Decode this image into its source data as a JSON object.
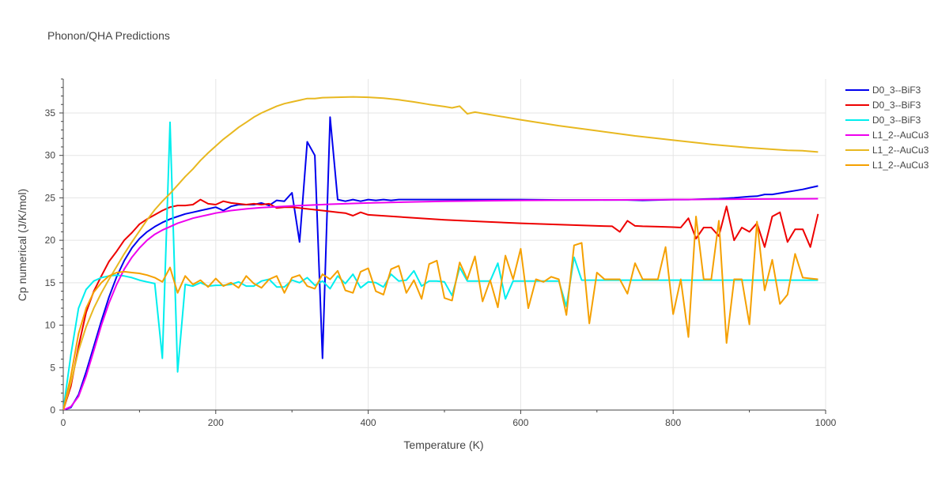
{
  "chart_data": {
    "type": "line",
    "title": "Phonon/QHA Predictions",
    "xlabel": "Temperature (K)",
    "ylabel": "Cp numerical (J/K/mol)",
    "xlim": [
      0,
      1000
    ],
    "ylim": [
      0,
      39
    ],
    "xticks": [
      0,
      200,
      400,
      600,
      800,
      1000
    ],
    "yticks": [
      0,
      5,
      10,
      15,
      20,
      25,
      30,
      35
    ],
    "grid": true,
    "legend_position": "top-right",
    "series": [
      {
        "name": "D0_3--BiF3",
        "color": "#0000ee",
        "x": [
          0,
          10,
          20,
          30,
          40,
          50,
          60,
          70,
          80,
          90,
          100,
          110,
          120,
          130,
          140,
          150,
          160,
          170,
          180,
          190,
          200,
          210,
          220,
          230,
          240,
          250,
          260,
          270,
          280,
          290,
          300,
          310,
          320,
          330,
          340,
          350,
          360,
          370,
          380,
          390,
          400,
          410,
          420,
          430,
          440,
          450,
          500,
          550,
          600,
          650,
          700,
          720,
          740,
          760,
          780,
          800,
          820,
          840,
          860,
          880,
          900,
          910,
          920,
          930,
          940,
          950,
          960,
          970,
          980,
          990
        ],
        "y": [
          0,
          0.3,
          1.8,
          4.5,
          7.5,
          10.5,
          13.3,
          15.7,
          17.6,
          19.1,
          20.2,
          21.0,
          21.6,
          22.1,
          22.5,
          22.8,
          23.1,
          23.3,
          23.5,
          23.7,
          23.9,
          23.5,
          24.0,
          24.2,
          24.2,
          24.2,
          24.4,
          24.1,
          24.7,
          24.6,
          25.6,
          19.8,
          31.6,
          30.0,
          6.1,
          34.5,
          24.8,
          24.6,
          24.8,
          24.6,
          24.8,
          24.7,
          24.8,
          24.7,
          24.8,
          24.8,
          24.8,
          24.8,
          24.8,
          24.75,
          24.75,
          24.75,
          24.75,
          24.7,
          24.75,
          24.8,
          24.8,
          24.85,
          24.9,
          25.0,
          25.15,
          25.2,
          25.4,
          25.4,
          25.55,
          25.7,
          25.85,
          26.0,
          26.2,
          26.4
        ]
      },
      {
        "name": "D0_3--BiF3",
        "color": "#ee0000",
        "x": [
          0,
          10,
          20,
          30,
          40,
          50,
          60,
          70,
          80,
          90,
          100,
          110,
          120,
          130,
          140,
          150,
          160,
          170,
          180,
          190,
          200,
          210,
          220,
          230,
          240,
          250,
          260,
          270,
          280,
          290,
          300,
          320,
          340,
          360,
          370,
          380,
          390,
          400,
          450,
          500,
          550,
          600,
          650,
          700,
          720,
          730,
          740,
          750,
          760,
          780,
          800,
          810,
          820,
          830,
          840,
          850,
          860,
          870,
          880,
          890,
          900,
          910,
          920,
          930,
          940,
          950,
          960,
          970,
          980,
          990
        ],
        "y": [
          0,
          2.8,
          7.5,
          11.5,
          14.0,
          15.8,
          17.5,
          18.7,
          20.0,
          20.9,
          21.9,
          22.5,
          23.0,
          23.5,
          23.9,
          24.1,
          24.1,
          24.2,
          24.8,
          24.3,
          24.2,
          24.6,
          24.4,
          24.3,
          24.2,
          24.3,
          24.2,
          24.3,
          23.8,
          23.9,
          23.9,
          23.7,
          23.5,
          23.3,
          23.2,
          22.9,
          23.3,
          23.0,
          22.7,
          22.4,
          22.2,
          22.0,
          21.85,
          21.7,
          21.65,
          21.0,
          22.3,
          21.7,
          21.65,
          21.6,
          21.55,
          21.5,
          22.6,
          20.2,
          21.5,
          21.5,
          20.5,
          24.0,
          20.0,
          21.5,
          21.0,
          22.0,
          19.2,
          22.8,
          23.3,
          19.8,
          21.3,
          21.3,
          19.2,
          23.1
        ]
      },
      {
        "name": "D0_3--BiF3",
        "color": "#00eeee",
        "x": [
          0,
          10,
          20,
          30,
          40,
          50,
          60,
          70,
          80,
          90,
          100,
          110,
          120,
          130,
          140,
          150,
          160,
          170,
          180,
          190,
          200,
          210,
          220,
          230,
          240,
          250,
          260,
          270,
          280,
          290,
          300,
          310,
          320,
          330,
          340,
          350,
          360,
          370,
          380,
          390,
          400,
          410,
          420,
          430,
          440,
          450,
          460,
          470,
          480,
          490,
          500,
          510,
          520,
          530,
          540,
          550,
          560,
          570,
          580,
          590,
          600,
          610,
          620,
          630,
          640,
          650,
          660,
          670,
          680,
          690,
          700,
          750,
          800,
          850,
          900,
          950,
          990
        ],
        "y": [
          0,
          6.5,
          12.0,
          14.2,
          15.2,
          15.6,
          15.8,
          15.9,
          15.8,
          15.6,
          15.3,
          15.1,
          14.9,
          6.1,
          33.9,
          4.5,
          14.8,
          14.6,
          15.0,
          14.6,
          14.7,
          14.7,
          14.8,
          15.1,
          14.6,
          14.6,
          15.2,
          15.4,
          14.5,
          14.5,
          15.3,
          15.0,
          15.6,
          14.7,
          15.2,
          14.3,
          15.8,
          14.9,
          16.0,
          14.4,
          15.1,
          15.0,
          14.5,
          16.0,
          15.2,
          15.3,
          16.4,
          14.6,
          15.2,
          15.2,
          15.1,
          13.5,
          16.8,
          15.2,
          15.2,
          15.2,
          15.2,
          17.3,
          13.1,
          15.2,
          15.2,
          15.2,
          15.2,
          15.2,
          15.2,
          15.2,
          12.2,
          18.0,
          15.3,
          15.3,
          15.3,
          15.3,
          15.3,
          15.3,
          15.3,
          15.3,
          15.3
        ]
      },
      {
        "name": "L1_2--AuCu3",
        "color": "#ee00ee",
        "x": [
          0,
          10,
          20,
          30,
          40,
          50,
          60,
          70,
          80,
          90,
          100,
          110,
          120,
          130,
          140,
          150,
          160,
          170,
          180,
          190,
          200,
          220,
          240,
          260,
          280,
          300,
          350,
          400,
          450,
          500,
          600,
          700,
          800,
          900,
          990
        ],
        "y": [
          0,
          0.4,
          1.6,
          4.0,
          7.0,
          10.0,
          12.6,
          14.8,
          16.6,
          18.0,
          19.1,
          20.0,
          20.7,
          21.2,
          21.6,
          22.0,
          22.3,
          22.6,
          22.8,
          23.0,
          23.2,
          23.5,
          23.7,
          23.85,
          23.95,
          24.05,
          24.25,
          24.4,
          24.5,
          24.6,
          24.7,
          24.75,
          24.8,
          24.85,
          24.9
        ]
      },
      {
        "name": "L1_2--AuCu3",
        "color": "#e8b820",
        "x": [
          0,
          10,
          20,
          30,
          40,
          50,
          60,
          70,
          80,
          90,
          100,
          110,
          120,
          130,
          140,
          150,
          160,
          170,
          180,
          190,
          200,
          210,
          220,
          230,
          240,
          250,
          260,
          270,
          280,
          290,
          300,
          310,
          320,
          330,
          340,
          360,
          380,
          400,
          420,
          440,
          460,
          480,
          500,
          510,
          520,
          530,
          540,
          560,
          600,
          650,
          700,
          750,
          800,
          850,
          900,
          950,
          970,
          990
        ],
        "y": [
          0,
          3.2,
          7.0,
          9.8,
          12.0,
          13.8,
          15.4,
          16.9,
          18.4,
          19.8,
          21.1,
          22.4,
          23.6,
          24.6,
          25.5,
          26.5,
          27.5,
          28.4,
          29.4,
          30.3,
          31.1,
          31.9,
          32.6,
          33.3,
          33.9,
          34.5,
          35.0,
          35.4,
          35.8,
          36.1,
          36.3,
          36.5,
          36.7,
          36.7,
          36.8,
          36.85,
          36.9,
          36.85,
          36.75,
          36.55,
          36.3,
          36.0,
          35.75,
          35.6,
          35.8,
          34.9,
          35.1,
          34.8,
          34.2,
          33.5,
          32.9,
          32.3,
          31.8,
          31.3,
          30.9,
          30.6,
          30.55,
          30.4
        ]
      },
      {
        "name": "L1_2--AuCu3",
        "color": "#f5a000",
        "x": [
          0,
          10,
          20,
          30,
          40,
          50,
          60,
          70,
          80,
          90,
          100,
          110,
          120,
          130,
          140,
          150,
          160,
          170,
          180,
          190,
          200,
          210,
          220,
          230,
          240,
          250,
          260,
          270,
          280,
          290,
          300,
          310,
          320,
          330,
          340,
          350,
          360,
          370,
          380,
          390,
          400,
          410,
          420,
          430,
          440,
          450,
          460,
          470,
          480,
          490,
          500,
          510,
          520,
          530,
          540,
          550,
          560,
          570,
          580,
          590,
          600,
          610,
          620,
          630,
          640,
          650,
          660,
          670,
          680,
          690,
          700,
          710,
          720,
          730,
          740,
          750,
          760,
          770,
          780,
          790,
          800,
          810,
          820,
          830,
          840,
          850,
          860,
          870,
          880,
          890,
          900,
          910,
          920,
          930,
          940,
          950,
          960,
          970,
          980,
          990
        ],
        "y": [
          0,
          4.0,
          9.0,
          12.0,
          13.9,
          15.0,
          15.8,
          16.2,
          16.3,
          16.2,
          16.1,
          15.9,
          15.6,
          15.1,
          16.8,
          13.8,
          15.8,
          14.8,
          15.3,
          14.5,
          15.5,
          14.6,
          15.0,
          14.4,
          15.8,
          14.9,
          14.4,
          15.4,
          15.8,
          13.8,
          15.6,
          15.9,
          14.6,
          14.3,
          16.0,
          15.4,
          16.4,
          14.1,
          13.8,
          16.3,
          16.7,
          14.0,
          13.6,
          16.6,
          17.0,
          13.8,
          15.3,
          13.1,
          17.2,
          17.6,
          13.2,
          12.9,
          17.4,
          15.4,
          18.1,
          12.8,
          15.3,
          12.1,
          18.2,
          15.4,
          19.0,
          12.0,
          15.4,
          15.1,
          15.7,
          15.4,
          11.2,
          19.4,
          19.7,
          10.2,
          16.2,
          15.4,
          15.4,
          15.4,
          13.7,
          17.3,
          15.4,
          15.4,
          15.4,
          19.2,
          11.3,
          15.4,
          8.6,
          22.8,
          15.4,
          15.4,
          22.3,
          7.9,
          15.4,
          15.4,
          10.1,
          22.2,
          14.1,
          17.7,
          12.5,
          13.6,
          18.4,
          15.6,
          15.5,
          15.4
        ]
      }
    ]
  }
}
